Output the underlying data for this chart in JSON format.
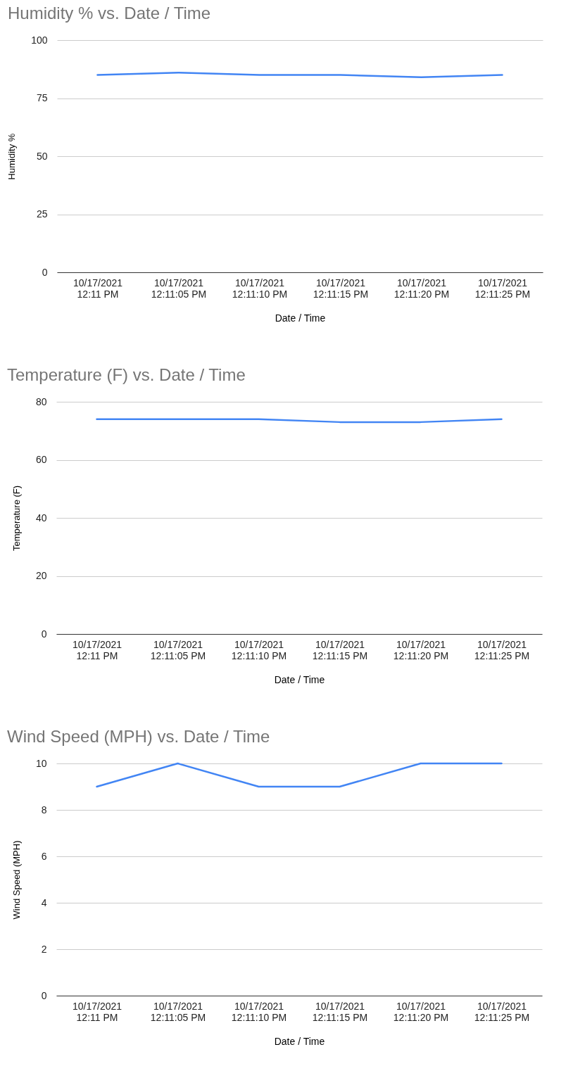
{
  "chart_data": [
    {
      "type": "line",
      "title": "Humidity % vs. Date / Time",
      "xlabel": "Date / Time",
      "ylabel": "Humidity %",
      "categories": [
        "10/17/2021\n12:11 PM",
        "10/17/2021\n12:11:05 PM",
        "10/17/2021\n12:11:10 PM",
        "10/17/2021\n12:11:15 PM",
        "10/17/2021\n12:11:20 PM",
        "10/17/2021\n12:11:25 PM"
      ],
      "series": [
        {
          "color": "#4285f4",
          "values": [
            85,
            86,
            85,
            85,
            84,
            85
          ]
        }
      ],
      "ylim": [
        0,
        100
      ],
      "yticks": [
        0,
        25,
        50,
        75,
        100
      ],
      "grid": "y"
    },
    {
      "type": "line",
      "title": "Temperature (F) vs. Date / Time",
      "xlabel": "Date / Time",
      "ylabel": "Temperature (F)",
      "categories": [
        "10/17/2021\n12:11 PM",
        "10/17/2021\n12:11:05 PM",
        "10/17/2021\n12:11:10 PM",
        "10/17/2021\n12:11:15 PM",
        "10/17/2021\n12:11:20 PM",
        "10/17/2021\n12:11:25 PM"
      ],
      "series": [
        {
          "color": "#4285f4",
          "values": [
            74,
            74,
            74,
            73,
            73,
            74
          ]
        }
      ],
      "ylim": [
        0,
        80
      ],
      "yticks": [
        0,
        20,
        40,
        60,
        80
      ],
      "grid": "y"
    },
    {
      "type": "line",
      "title": "Wind Speed (MPH) vs. Date / Time",
      "xlabel": "Date / Time",
      "ylabel": "Wind Speed (MPH)",
      "categories": [
        "10/17/2021\n12:11 PM",
        "10/17/2021\n12:11:05 PM",
        "10/17/2021\n12:11:10 PM",
        "10/17/2021\n12:11:15 PM",
        "10/17/2021\n12:11:20 PM",
        "10/17/2021\n12:11:25 PM"
      ],
      "series": [
        {
          "color": "#4285f4",
          "values": [
            9,
            10,
            9,
            9,
            10,
            10
          ]
        }
      ],
      "ylim": [
        0,
        10
      ],
      "yticks": [
        0,
        2,
        4,
        6,
        8,
        10
      ],
      "grid": "y"
    }
  ]
}
